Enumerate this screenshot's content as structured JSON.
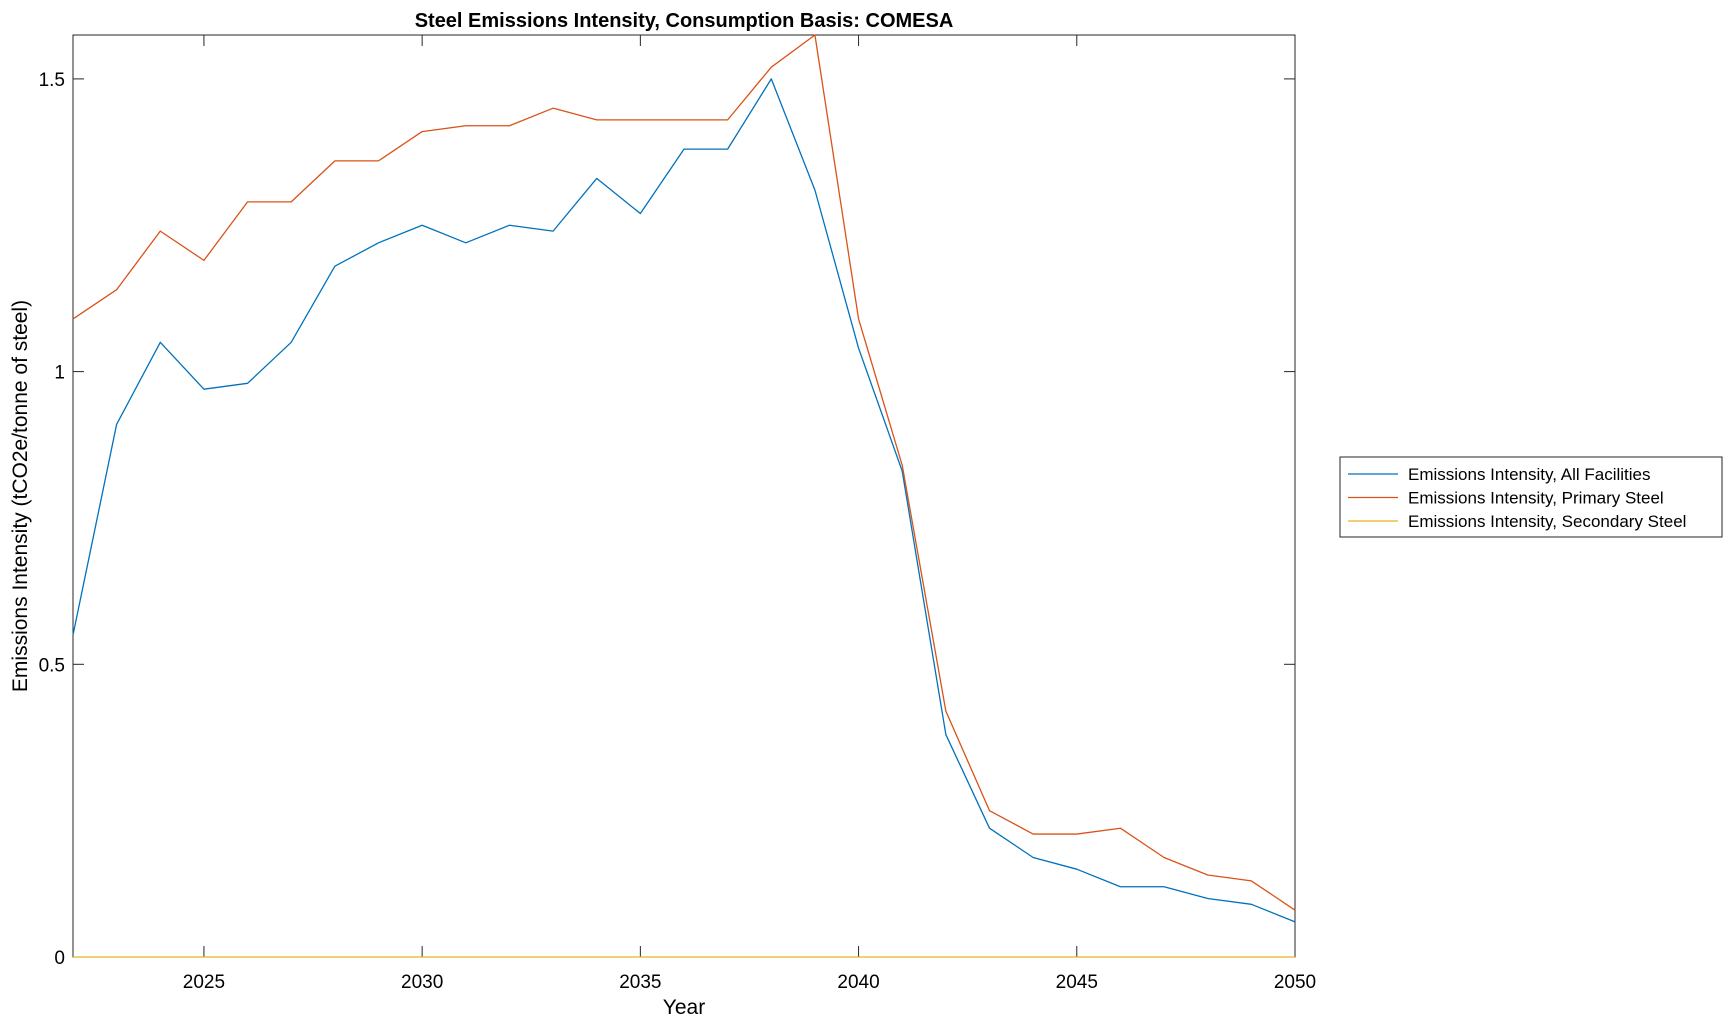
{
  "chart_data": {
    "type": "line",
    "title": "Steel Emissions Intensity, Consumption Basis: COMESA",
    "xlabel": "Year",
    "ylabel": "Emissions Intensity (tCO2e/tonne of steel)",
    "xlim": [
      2022,
      2050
    ],
    "ylim": [
      0,
      1.575
    ],
    "xticks": [
      2025,
      2030,
      2035,
      2040,
      2045,
      2050
    ],
    "yticks": [
      0,
      0.5,
      1,
      1.5
    ],
    "ytick_labels": [
      "0",
      "0.5",
      "1",
      "1.5"
    ],
    "grid": false,
    "legend_placement": "outside-right",
    "x": [
      2022,
      2023,
      2024,
      2025,
      2026,
      2027,
      2028,
      2029,
      2030,
      2031,
      2032,
      2033,
      2034,
      2035,
      2036,
      2037,
      2038,
      2039,
      2040,
      2041,
      2042,
      2043,
      2044,
      2045,
      2046,
      2047,
      2048,
      2049,
      2050
    ],
    "series": [
      {
        "name": "Emissions Intensity, All Facilities",
        "color": "#0072BD",
        "values": [
          0.55,
          0.91,
          1.05,
          0.97,
          0.98,
          1.05,
          1.18,
          1.22,
          1.25,
          1.22,
          1.25,
          1.24,
          1.33,
          1.27,
          1.38,
          1.38,
          1.5,
          1.31,
          1.04,
          0.83,
          0.38,
          0.22,
          0.17,
          0.15,
          0.12,
          0.12,
          0.1,
          0.09,
          0.06
        ]
      },
      {
        "name": "Emissions Intensity, Primary Steel",
        "color": "#D95319",
        "values": [
          1.09,
          1.14,
          1.24,
          1.19,
          1.29,
          1.29,
          1.36,
          1.36,
          1.41,
          1.42,
          1.42,
          1.45,
          1.43,
          1.43,
          1.43,
          1.43,
          1.52,
          1.575,
          1.09,
          0.84,
          0.42,
          0.25,
          0.21,
          0.21,
          0.22,
          0.17,
          0.14,
          0.13,
          0.08
        ]
      },
      {
        "name": "Emissions Intensity, Secondary Steel",
        "color": "#EDB120",
        "values": [
          0,
          0,
          0,
          0,
          0,
          0,
          0,
          0,
          0,
          0,
          0,
          0,
          0,
          0,
          0,
          0,
          0,
          0,
          0,
          0,
          0,
          0,
          0,
          0,
          0,
          0,
          0,
          0,
          0
        ]
      }
    ]
  }
}
